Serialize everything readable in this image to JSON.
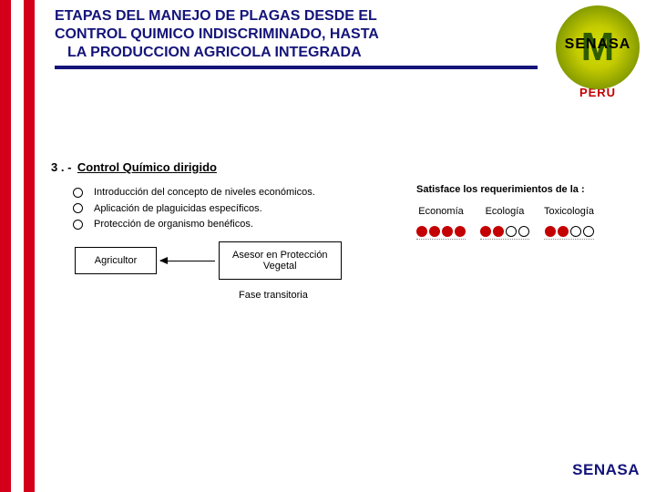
{
  "colors": {
    "accent_red": "#d4001a",
    "title_blue": "#14147a",
    "dot_fill": "#c40000",
    "logo_text": "#2e5c00"
  },
  "header": {
    "title_line1": "ETAPAS DEL MANEJO DE PLAGAS DESDE EL",
    "title_line2": "CONTROL QUIMICO INDISCRIMINADO, HASTA",
    "title_line3": "LA PRODUCCION AGRICOLA INTEGRADA"
  },
  "logo": {
    "letter": "M",
    "label": "SENASA",
    "country": "PERU"
  },
  "section": {
    "number": "3 . -",
    "title": "Control Químico dirigido",
    "bullets": [
      "Introducción del concepto de niveles económicos.",
      "Aplicación de plaguicidas específicos.",
      "Protección de organismo benéficos."
    ]
  },
  "flow": {
    "left_box": "Agricultor",
    "right_box_line1": "Asesor en Protección",
    "right_box_line2": "Vegetal",
    "phase": "Fase transitoria"
  },
  "requirements": {
    "title": "Satisface los requerimientos de la :",
    "columns": [
      {
        "label": "Economía",
        "filled": 4,
        "total": 4
      },
      {
        "label": "Ecología",
        "filled": 2,
        "total": 4
      },
      {
        "label": "Toxicología",
        "filled": 2,
        "total": 4
      }
    ]
  },
  "footer": {
    "label": "SENASA"
  }
}
